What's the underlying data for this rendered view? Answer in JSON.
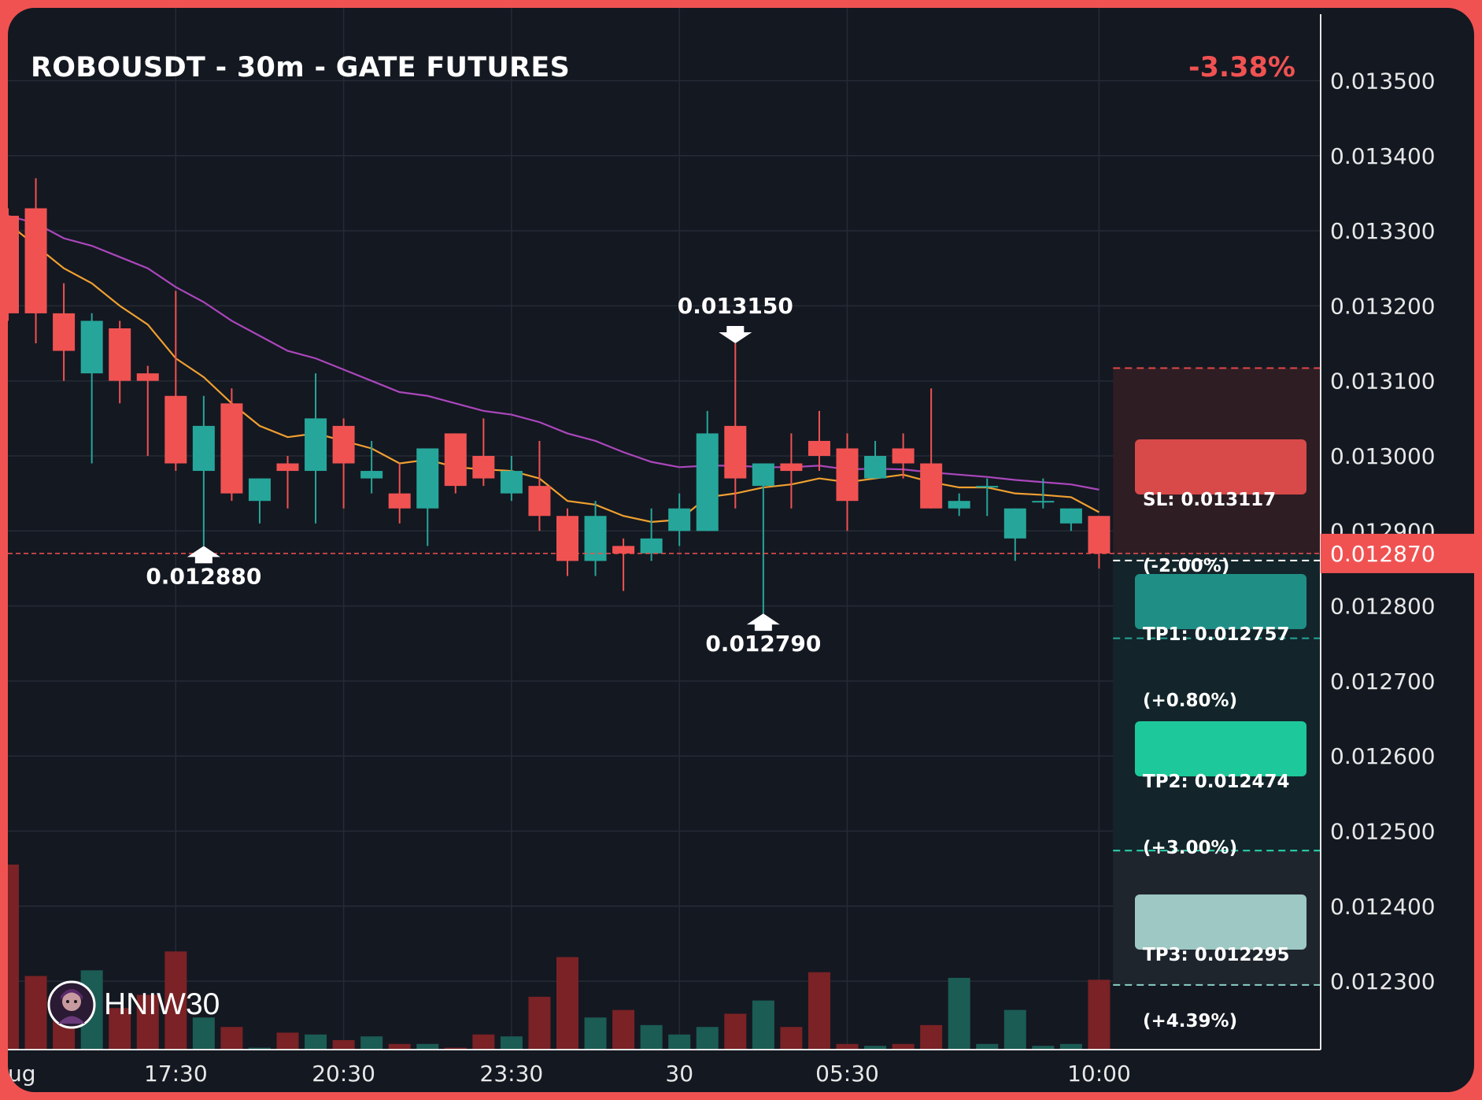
{
  "header": {
    "title": "ROBOUSDT - 30m - GATE FUTURES",
    "change": "-3.38%"
  },
  "brand": {
    "name": "HNIW30",
    "avatar_icon": "avatar-icon"
  },
  "colors": {
    "background": "#141821",
    "frame": "#f05252",
    "up": "#26a69a",
    "down": "#f05252",
    "ema_fast": "#f0a030",
    "ema_slow": "#ab47bc",
    "sl_zone": "#2f1d24",
    "tp_zone": "#13252a",
    "tp3_zone": "#1f252d"
  },
  "targets": {
    "sl": {
      "line1": "SL: 0.013117",
      "line2": "(-2.00%)",
      "price": 0.013117,
      "color": "#d84a4a"
    },
    "tp1": {
      "line1": "TP1: 0.012757",
      "line2": "(+0.80%)",
      "price": 0.012757,
      "color": "#1f8f86"
    },
    "tp2": {
      "line1": "TP2: 0.012474",
      "line2": "(+3.00%)",
      "price": 0.012474,
      "color": "#1dc99a"
    },
    "tp3": {
      "line1": "TP3: 0.012295",
      "line2": "(+4.39%)",
      "price": 0.012295,
      "color": "#9ec8c3"
    }
  },
  "chart_data": {
    "type": "candlestick",
    "title": "ROBOUSDT - 30m - GATE FUTURES",
    "ylim": [
      0.0122,
      0.01357
    ],
    "y_ticks": [
      "0.012300",
      "0.012400",
      "0.012500",
      "0.012600",
      "0.012700",
      "0.012800",
      "0.012900",
      "0.013000",
      "0.013100",
      "0.013200",
      "0.013300",
      "0.013400",
      "0.013500"
    ],
    "x_ticks": [
      {
        "label": "ug",
        "index": -0.5
      },
      {
        "label": "17:30",
        "index": 6
      },
      {
        "label": "20:30",
        "index": 12
      },
      {
        "label": "23:30",
        "index": 18
      },
      {
        "label": "30",
        "index": 24
      },
      {
        "label": "05:30",
        "index": 30
      },
      {
        "label": "10:00",
        "index": 39
      }
    ],
    "current_price": {
      "label": "0.012870",
      "value": 0.01287
    },
    "grid": true,
    "candles": [
      [
        0.01332,
        0.01333,
        0.01318,
        0.01319
      ],
      [
        0.01333,
        0.01337,
        0.01315,
        0.01319
      ],
      [
        0.01319,
        0.01323,
        0.0131,
        0.01314
      ],
      [
        0.01311,
        0.01319,
        0.01299,
        0.01318
      ],
      [
        0.01317,
        0.01318,
        0.01307,
        0.0131
      ],
      [
        0.01311,
        0.01312,
        0.013,
        0.0131
      ],
      [
        0.01308,
        0.01322,
        0.01298,
        0.01299
      ],
      [
        0.01298,
        0.01308,
        0.01288,
        0.01304
      ],
      [
        0.01307,
        0.01309,
        0.01294,
        0.01295
      ],
      [
        0.01294,
        0.01297,
        0.01291,
        0.01297
      ],
      [
        0.01299,
        0.013,
        0.01293,
        0.01298
      ],
      [
        0.01298,
        0.01311,
        0.01291,
        0.01305
      ],
      [
        0.01304,
        0.01305,
        0.01293,
        0.01299
      ],
      [
        0.01297,
        0.01302,
        0.01295,
        0.01298
      ],
      [
        0.01295,
        0.01299,
        0.01291,
        0.01293
      ],
      [
        0.01293,
        0.01301,
        0.01288,
        0.01301
      ],
      [
        0.01303,
        0.01303,
        0.01295,
        0.01296
      ],
      [
        0.013,
        0.01305,
        0.01296,
        0.01297
      ],
      [
        0.01295,
        0.013,
        0.01294,
        0.01298
      ],
      [
        0.01296,
        0.01302,
        0.0129,
        0.01292
      ],
      [
        0.01292,
        0.01293,
        0.01284,
        0.01286
      ],
      [
        0.01286,
        0.01294,
        0.01284,
        0.01292
      ],
      [
        0.01288,
        0.01289,
        0.01282,
        0.01287
      ],
      [
        0.01287,
        0.01293,
        0.01286,
        0.01289
      ],
      [
        0.0129,
        0.01295,
        0.01288,
        0.01293
      ],
      [
        0.0129,
        0.01306,
        0.0129,
        0.01303
      ],
      [
        0.01304,
        0.01315,
        0.01293,
        0.01297
      ],
      [
        0.01296,
        0.01299,
        0.01279,
        0.01299
      ],
      [
        0.01299,
        0.01303,
        0.01293,
        0.01298
      ],
      [
        0.01302,
        0.01306,
        0.01298,
        0.013
      ],
      [
        0.01301,
        0.01303,
        0.0129,
        0.01294
      ],
      [
        0.01297,
        0.01302,
        0.01297,
        0.013
      ],
      [
        0.01301,
        0.01303,
        0.01297,
        0.01299
      ],
      [
        0.01299,
        0.01309,
        0.01293,
        0.01293
      ],
      [
        0.01293,
        0.01295,
        0.01292,
        0.01294
      ],
      [
        0.01296,
        0.01297,
        0.01292,
        0.01296
      ],
      [
        0.01289,
        0.01293,
        0.01286,
        0.01293
      ],
      [
        0.01294,
        0.01297,
        0.01293,
        0.01294
      ],
      [
        0.01291,
        0.01293,
        0.0129,
        0.01293
      ],
      [
        0.01292,
        0.01292,
        0.01285,
        0.01287
      ]
    ],
    "volume": [
      98,
      39,
      29,
      42,
      22,
      29,
      52,
      17,
      12,
      1,
      9,
      8,
      5,
      7,
      3,
      3,
      1,
      8,
      7,
      28,
      49,
      17,
      21,
      13,
      8,
      12,
      19,
      26,
      12,
      41,
      3,
      2,
      3,
      13,
      38,
      3,
      21,
      2,
      3,
      37
    ],
    "ema_fast": [
      0.01331,
      0.01328,
      0.01325,
      0.01323,
      0.0132,
      0.013175,
      0.01313,
      0.013105,
      0.01307,
      0.01304,
      0.013025,
      0.01303,
      0.01302,
      0.01301,
      0.01299,
      0.012995,
      0.012985,
      0.012982,
      0.01298,
      0.01297,
      0.01294,
      0.012935,
      0.01292,
      0.012912,
      0.012915,
      0.012945,
      0.01295,
      0.012958,
      0.012962,
      0.01297,
      0.012965,
      0.01297,
      0.012975,
      0.012965,
      0.012958,
      0.012958,
      0.01295,
      0.012948,
      0.012945,
      0.012925
    ],
    "ema_slow": [
      0.01332,
      0.01331,
      0.01329,
      0.01328,
      0.013265,
      0.01325,
      0.013225,
      0.013205,
      0.01318,
      0.01316,
      0.01314,
      0.01313,
      0.013115,
      0.0131,
      0.013085,
      0.01308,
      0.01307,
      0.01306,
      0.013055,
      0.013045,
      0.01303,
      0.01302,
      0.013005,
      0.012992,
      0.012985,
      0.012987,
      0.012987,
      0.012985,
      0.012985,
      0.012987,
      0.012982,
      0.012983,
      0.012982,
      0.012978,
      0.012975,
      0.012972,
      0.012968,
      0.012965,
      0.012962,
      0.012955
    ],
    "markers": [
      {
        "label": "0.013150",
        "index": 26,
        "value": 0.01315,
        "kind": "high"
      },
      {
        "label": "0.012790",
        "index": 27,
        "value": 0.01279,
        "kind": "low"
      },
      {
        "label": "0.012880",
        "index": 7,
        "value": 0.01288,
        "kind": "low"
      }
    ]
  }
}
